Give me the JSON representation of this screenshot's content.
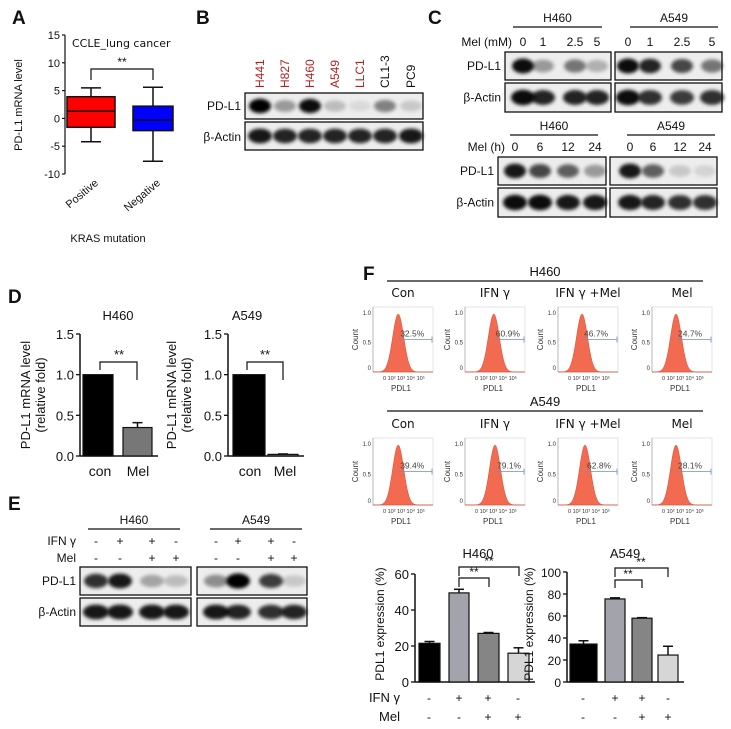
{
  "panel_labels": {
    "A": "A",
    "B": "B",
    "C": "C",
    "D": "D",
    "E": "E",
    "F": "F"
  },
  "common": {
    "sig": "**",
    "plus": "+",
    "minus": "-",
    "pdl1": "PD-L1",
    "actin": "β-Actin",
    "ifn": "IFN γ",
    "mel": "Mel"
  },
  "colors": {
    "box_positive": "#ff0000",
    "box_negative": "#0000ff",
    "cell_line_red": "#b22222",
    "histogram": "#f26b50",
    "gate": "#6f8fbf"
  },
  "blot_B": {
    "lanes": [
      {
        "name": "H441",
        "color": "red"
      },
      {
        "name": "H827",
        "color": "red"
      },
      {
        "name": "H460",
        "color": "red"
      },
      {
        "name": "A549",
        "color": "red"
      },
      {
        "name": "LLC1",
        "color": "red"
      },
      {
        "name": "CL1-3",
        "color": "black"
      },
      {
        "name": "PC9",
        "color": "black"
      }
    ],
    "pdl1_intensity": [
      1.0,
      0.35,
      0.95,
      0.2,
      0.08,
      0.45,
      0.15
    ],
    "actin_intensity": [
      0.9,
      0.85,
      0.85,
      0.85,
      0.85,
      0.85,
      0.9
    ]
  },
  "blot_C": {
    "dose": {
      "row_label": "Mel (mM)",
      "groups": [
        {
          "name": "H460",
          "lanes": [
            "0",
            "1",
            "2.5",
            "5"
          ],
          "pdl1": [
            0.95,
            0.35,
            0.5,
            0.25
          ],
          "actin": [
            0.95,
            0.85,
            0.85,
            0.85
          ]
        },
        {
          "name": "A549",
          "lanes": [
            "0",
            "1",
            "2.5",
            "5"
          ],
          "pdl1": [
            0.95,
            0.85,
            0.7,
            0.5
          ],
          "actin": [
            0.95,
            0.8,
            0.75,
            0.8
          ]
        }
      ]
    },
    "time": {
      "row_label": "Mel (h)",
      "groups": [
        {
          "name": "H460",
          "lanes": [
            "0",
            "6",
            "12",
            "24"
          ],
          "pdl1": [
            0.9,
            0.7,
            0.6,
            0.35
          ],
          "actin": [
            0.95,
            0.95,
            0.9,
            0.9
          ]
        },
        {
          "name": "A549",
          "lanes": [
            "0",
            "6",
            "12",
            "24"
          ],
          "pdl1": [
            0.9,
            0.6,
            0.15,
            0.1
          ],
          "actin": [
            0.9,
            0.85,
            0.8,
            0.8
          ]
        }
      ]
    }
  },
  "blot_E": {
    "ifn_row": [
      "-",
      "+",
      "+",
      "-"
    ],
    "mel_row": [
      "-",
      "-",
      "+",
      "+"
    ],
    "groups": [
      {
        "name": "H460",
        "pdl1": [
          0.8,
          0.9,
          0.3,
          0.2
        ],
        "actin": [
          0.9,
          0.9,
          0.9,
          0.9
        ]
      },
      {
        "name": "A549",
        "pdl1": [
          0.4,
          1.0,
          0.75,
          0.15
        ],
        "actin": [
          0.9,
          0.85,
          0.8,
          0.85
        ]
      }
    ]
  },
  "flow": {
    "x_label": "PDL1",
    "y_label": "Count",
    "x_ticks": "0 10² 10³ 10⁴ 10⁵",
    "y_ticks": [
      "1.0",
      "0.5",
      "0"
    ],
    "conditions": [
      "Con",
      "IFN γ",
      "IFN γ +Mel",
      "Mel"
    ],
    "groups": [
      {
        "name": "H460",
        "percent": [
          "32.5%",
          "60.9%",
          "46.7%",
          "24.7%"
        ]
      },
      {
        "name": "A549",
        "percent": [
          "39.4%",
          "79.1%",
          "62.8%",
          "28.1%"
        ]
      }
    ]
  },
  "chart_data": [
    {
      "id": "A",
      "type": "boxplot",
      "title": "CCLE_lung cancer",
      "ylabel": "PD-L1 mRNA level",
      "xlabel": "KRAS mutation",
      "ylim": [
        -10,
        15
      ],
      "yticks": [
        -10,
        -5,
        0,
        5,
        10,
        15
      ],
      "categories": [
        "Positive",
        "Negative"
      ],
      "boxes": [
        {
          "min": -4.2,
          "q1": -1.6,
          "median": 1.3,
          "q3": 3.9,
          "max": 5.5
        },
        {
          "min": -7.7,
          "q1": -2.2,
          "median": -0.3,
          "q3": 2.2,
          "max": 5.6
        }
      ],
      "significance": "**"
    },
    {
      "id": "D-H460",
      "type": "bar",
      "title": "H460",
      "ylabel": "PD-L1 mRNA level",
      "ylabel2": "(relative fold)",
      "ylim": [
        0,
        1.5
      ],
      "yticks": [
        "0.0",
        "0.5",
        "1.0",
        "1.5"
      ],
      "categories": [
        "con",
        "Mel"
      ],
      "values": [
        1.0,
        0.35
      ],
      "errors": [
        0,
        0.06
      ],
      "significance": "**"
    },
    {
      "id": "D-A549",
      "type": "bar",
      "title": "A549",
      "ylabel": "PD-L1 mRNA level",
      "ylabel2": "(relative fold)",
      "ylim": [
        0,
        1.5
      ],
      "yticks": [
        "0.0",
        "0.5",
        "1.0",
        "1.5"
      ],
      "categories": [
        "con",
        "Mel"
      ],
      "values": [
        1.0,
        0.02
      ],
      "errors": [
        0,
        0.005
      ],
      "significance": "**"
    },
    {
      "id": "F-H460",
      "type": "bar",
      "title": "H460",
      "ylabel": "PDL1 expression (%)",
      "ylim": [
        0,
        60
      ],
      "yticks": [
        0,
        20,
        40,
        60
      ],
      "categories": [
        "con",
        "IFN γ",
        "IFN γ+Mel",
        "Mel"
      ],
      "values": [
        21.5,
        49.5,
        27,
        16
      ],
      "errors": [
        1,
        2,
        0.5,
        3
      ],
      "significance": [
        "**",
        "**"
      ]
    },
    {
      "id": "F-A549",
      "type": "bar",
      "title": "A549",
      "ylabel": "PDL1 expression (%)",
      "ylim": [
        0,
        100
      ],
      "yticks": [
        0,
        20,
        40,
        60,
        80,
        100
      ],
      "categories": [
        "con",
        "IFN γ",
        "IFN γ+Mel",
        "Mel"
      ],
      "values": [
        34.5,
        75.5,
        58,
        24.5
      ],
      "errors": [
        3,
        1,
        0.5,
        8
      ],
      "significance": [
        "**",
        "**"
      ]
    }
  ]
}
